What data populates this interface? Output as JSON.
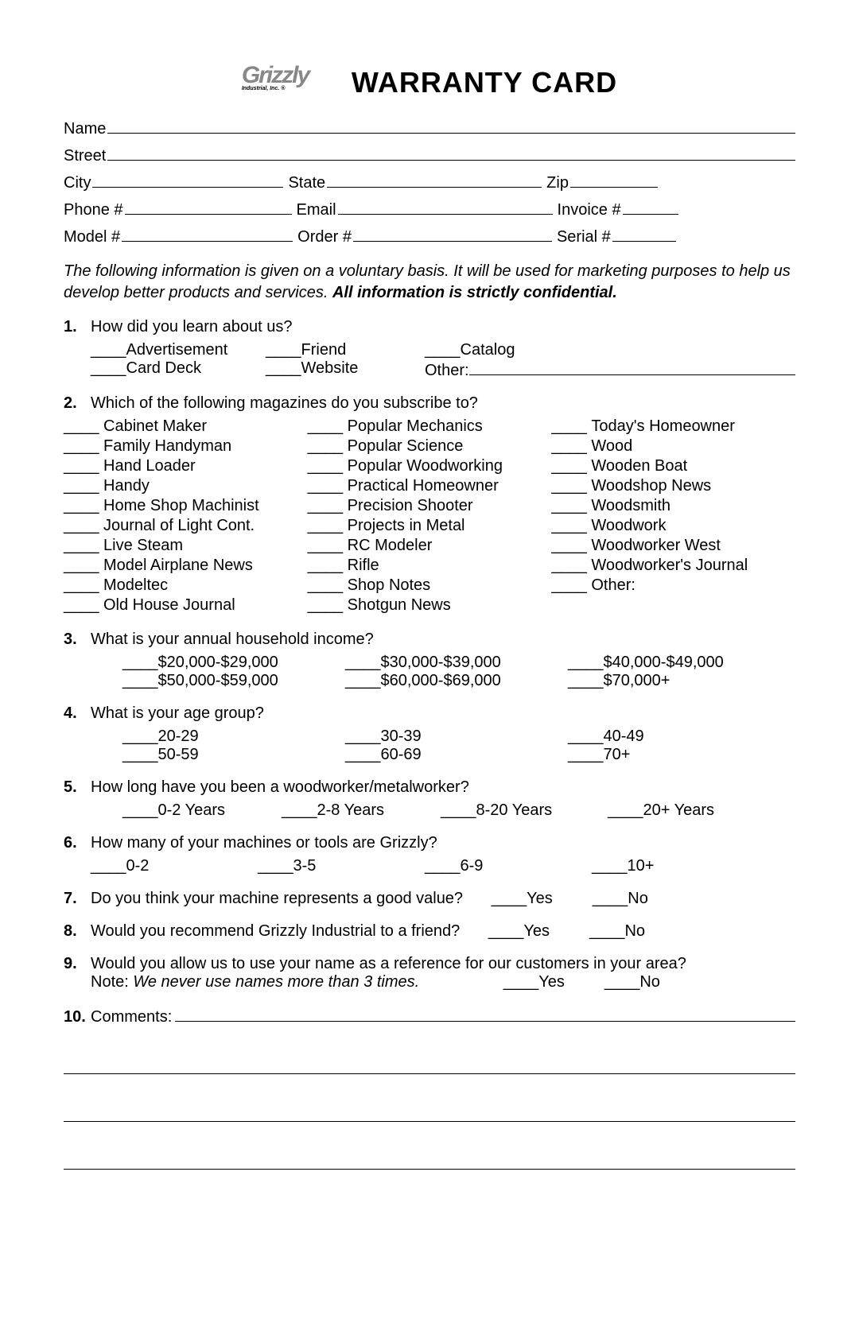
{
  "logo": {
    "brand": "Grizzly",
    "subtitle": "Industrial, Inc.",
    "reg": "®"
  },
  "title": "WARRANTY CARD",
  "fields": {
    "row1": [
      {
        "label": "Name"
      }
    ],
    "row2": [
      {
        "label": "Street"
      }
    ],
    "row3": [
      {
        "label": "City"
      },
      {
        "label": "State"
      },
      {
        "label": "Zip"
      }
    ],
    "row4": [
      {
        "label": "Phone #"
      },
      {
        "label": "Email"
      },
      {
        "label": "Invoice #"
      }
    ],
    "row5": [
      {
        "label": "Model #"
      },
      {
        "label": "Order #"
      },
      {
        "label": "Serial #"
      }
    ]
  },
  "disclaimer": {
    "text": "The following information is given on a voluntary basis. It will be used for marketing purposes to help us develop better products and services. ",
    "bold": "All information is strictly confidential."
  },
  "blank4": "____",
  "q1": {
    "num": "1.",
    "text": "How did you learn about us?",
    "row1": [
      {
        "l": "Advertisement"
      },
      {
        "l": "Friend"
      },
      {
        "l": "Catalog"
      }
    ],
    "row2": [
      {
        "l": "Card Deck"
      },
      {
        "l": "Website"
      }
    ],
    "other": "Other:"
  },
  "q2": {
    "num": "2.",
    "text": "Which of the following magazines do you subscribe to?",
    "col1": [
      "Cabinet Maker",
      "Family Handyman",
      "Hand Loader",
      "Handy",
      "Home Shop Machinist",
      "Journal of Light Cont.",
      "Live Steam",
      "Model Airplane News",
      "Modeltec",
      "Old House Journal"
    ],
    "col2": [
      "Popular Mechanics",
      "Popular Science",
      "Popular Woodworking",
      "Practical Homeowner",
      "Precision Shooter",
      "Projects in Metal",
      "RC Modeler",
      "Rifle",
      "Shop Notes",
      "Shotgun News"
    ],
    "col3": [
      "Today's Homeowner",
      "Wood",
      "Wooden Boat",
      "Woodshop News",
      "Woodsmith",
      "Woodwork",
      "Woodworker West",
      "Woodworker's Journal",
      "Other:"
    ]
  },
  "q3": {
    "num": "3.",
    "text": "What is your annual household income?",
    "row1": [
      {
        "l": "$20,000-$29,000"
      },
      {
        "l": "$30,000-$39,000"
      },
      {
        "l": "$40,000-$49,000"
      }
    ],
    "row2": [
      {
        "l": "$50,000-$59,000"
      },
      {
        "l": "$60,000-$69,000"
      },
      {
        "l": "$70,000+"
      }
    ]
  },
  "q4": {
    "num": "4.",
    "text": "What is your age group?",
    "row1": [
      {
        "l": "20-29"
      },
      {
        "l": "30-39"
      },
      {
        "l": "40-49"
      }
    ],
    "row2": [
      {
        "l": "50-59"
      },
      {
        "l": "60-69"
      },
      {
        "l": "70+"
      }
    ]
  },
  "q5": {
    "num": "5.",
    "text": "How long have you been a woodworker/metalworker?",
    "opts": [
      {
        "l": "0-2 Years"
      },
      {
        "l": "2-8 Years"
      },
      {
        "l": "8-20 Years"
      },
      {
        "l": "20+ Years"
      }
    ]
  },
  "q6": {
    "num": "6.",
    "text": "How many of your machines or tools are Grizzly?",
    "opts": [
      {
        "l": "0-2"
      },
      {
        "l": "3-5"
      },
      {
        "l": "6-9"
      },
      {
        "l": "10+"
      }
    ]
  },
  "q7": {
    "num": "7.",
    "text": "Do you think your machine represents a good value?",
    "yes": "Yes",
    "no": "No"
  },
  "q8": {
    "num": "8.",
    "text": "Would you recommend Grizzly Industrial to a friend?",
    "yes": "Yes",
    "no": "No"
  },
  "q9": {
    "num": "9.",
    "text": "Would you allow us to use your name as a reference for our customers in your area?",
    "note_prefix": "Note: ",
    "note": "We never use names more than 3 times.",
    "yes": "Yes",
    "no": "No"
  },
  "q10": {
    "num": "10.",
    "text": "Comments:"
  }
}
